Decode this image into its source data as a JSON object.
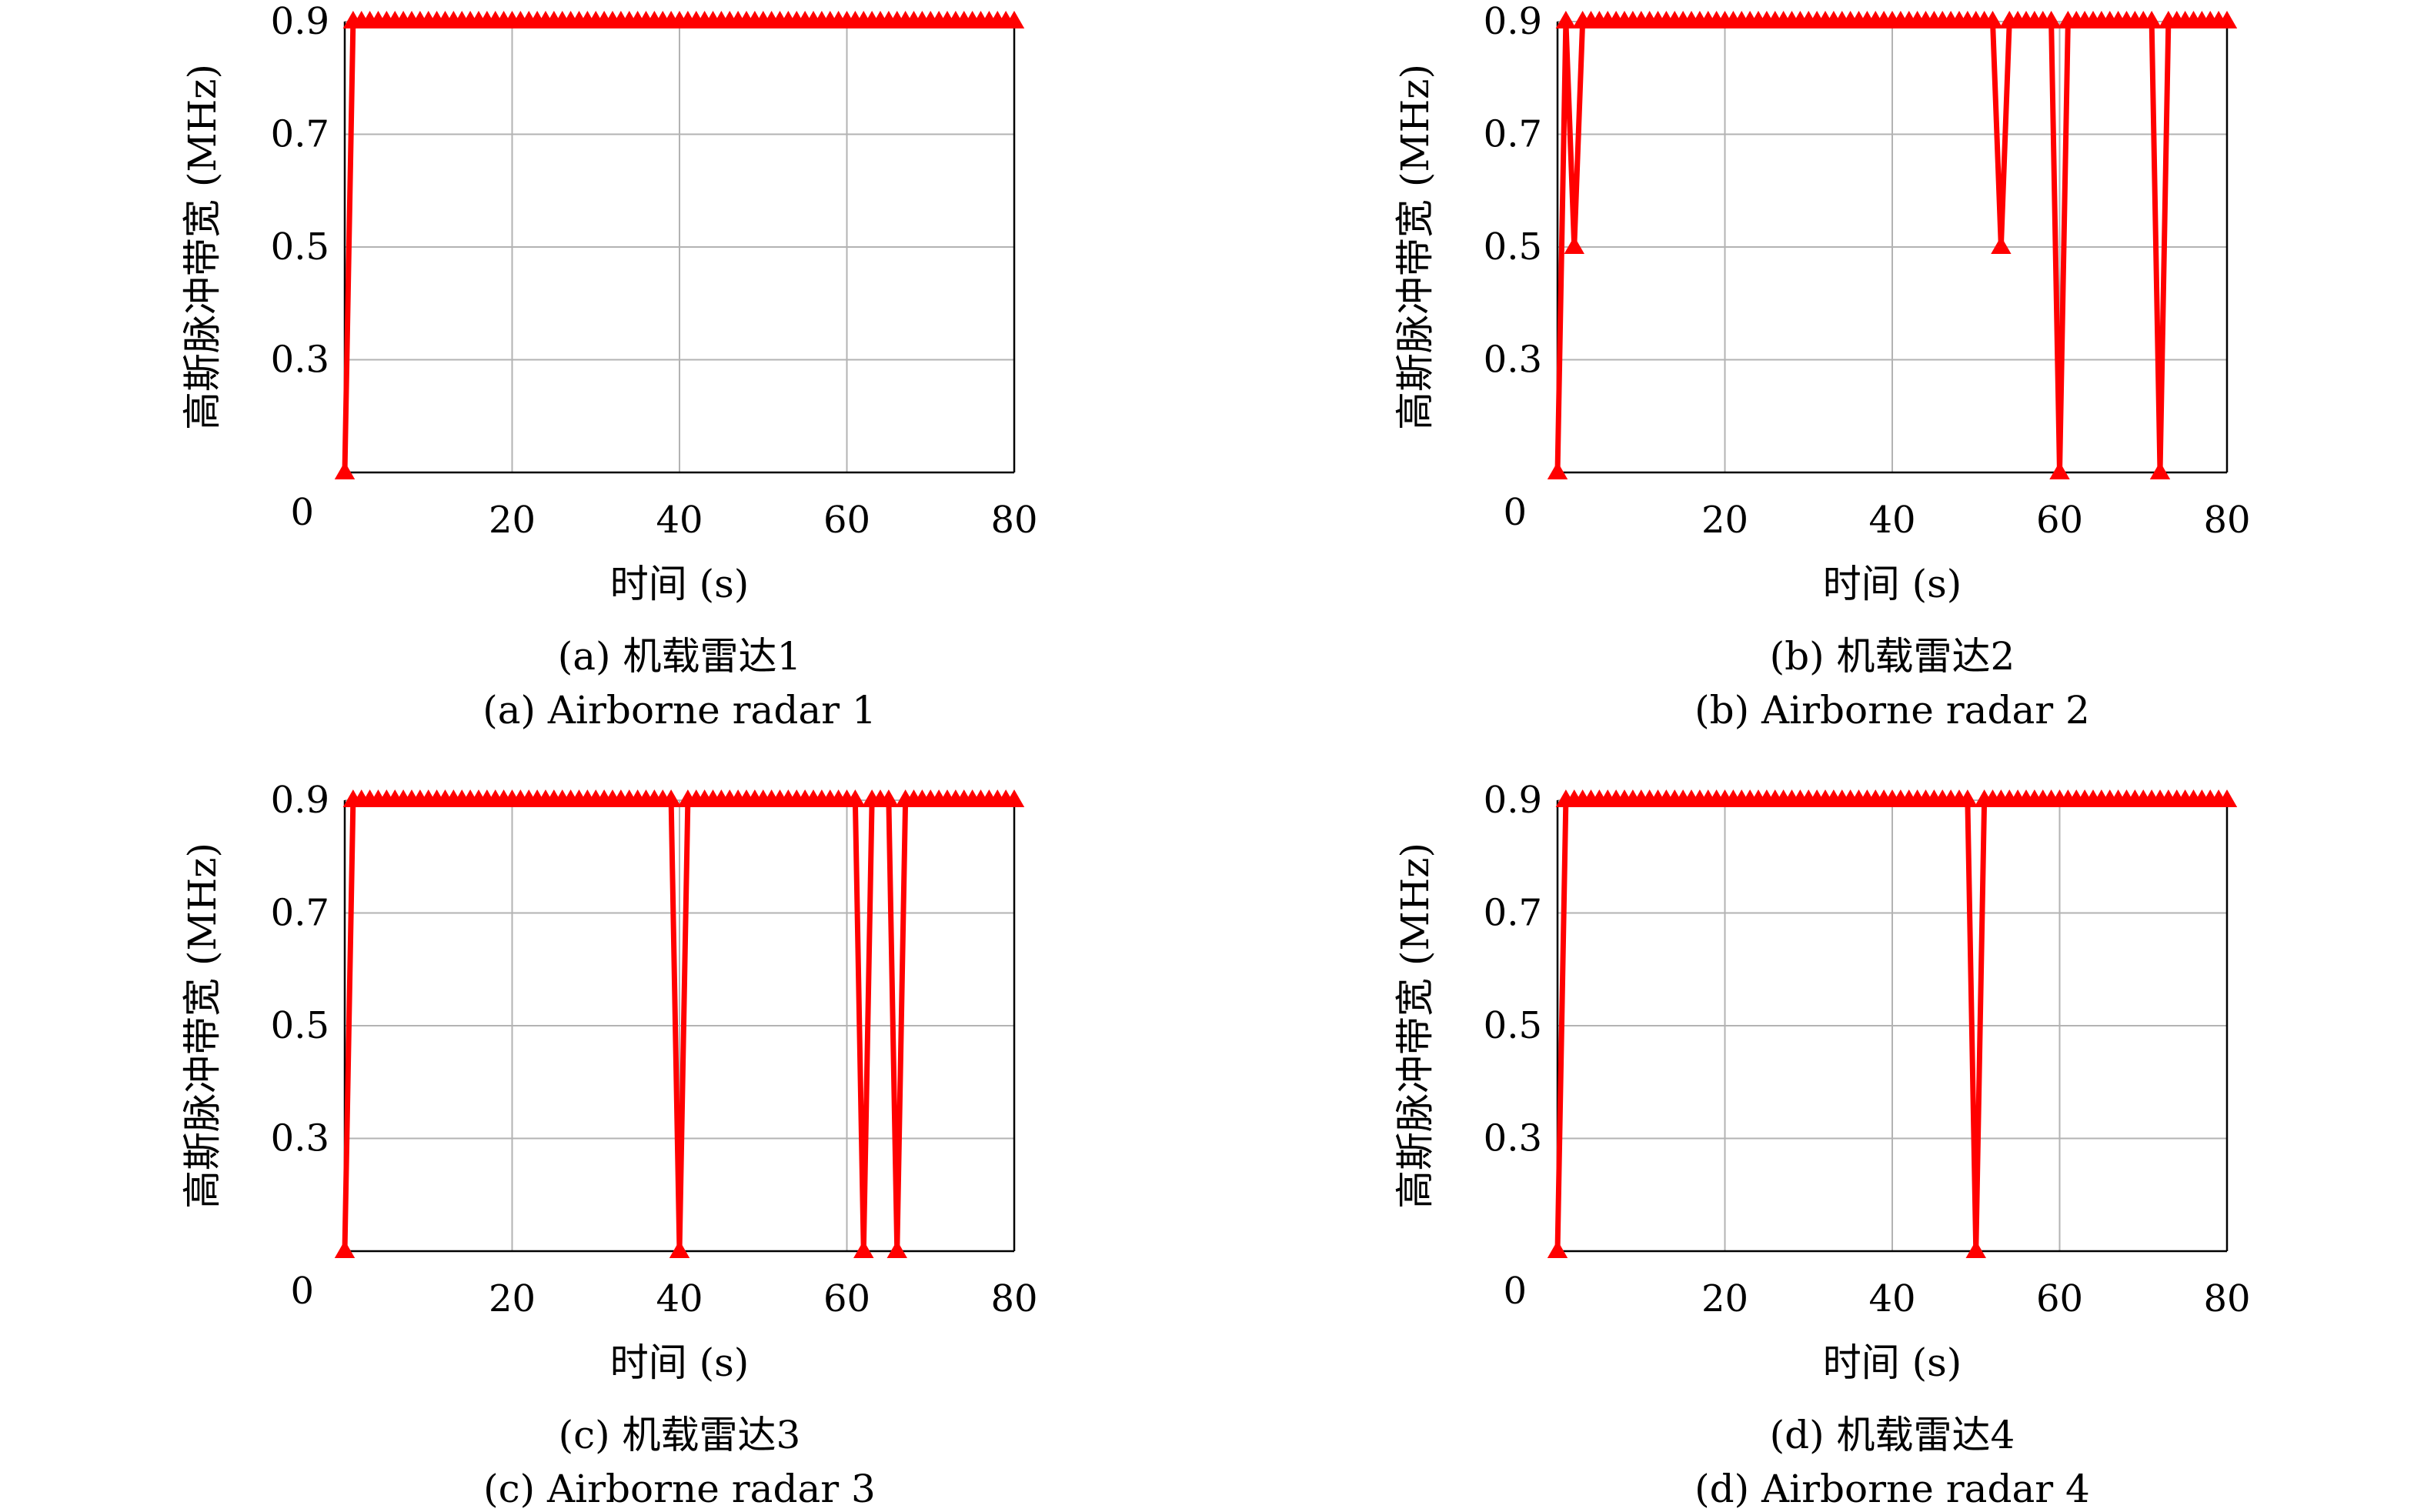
{
  "colors": {
    "series": "#ff0000",
    "grid": "#b3b3b3",
    "axis": "#000000"
  },
  "marker": "triangle-up",
  "chart_data": [
    {
      "type": "line",
      "caption_cn": "(a) 机载雷达1",
      "caption_en": "(a) Airborne radar 1",
      "xlabel": "时间 (s)",
      "ylabel": "高斯脉冲带宽 (MHz)",
      "xlim": [
        0,
        80
      ],
      "ylim": [
        0.1,
        0.9
      ],
      "xticks": [
        20,
        40,
        60,
        80
      ],
      "xtick_labels": [
        "20",
        "40",
        "60",
        "80"
      ],
      "yticks": [
        0.3,
        0.5,
        0.7,
        0.9
      ],
      "ytick_labels": [
        "0.3",
        "0.5",
        "0.7",
        "0.9"
      ],
      "origin_label": "0",
      "grid": true,
      "series": [
        {
          "marker": "triangle-up",
          "color": "#ff0000",
          "x": [
            0,
            1,
            2,
            3,
            4,
            5,
            6,
            7,
            8,
            9,
            10,
            11,
            12,
            13,
            14,
            15,
            16,
            17,
            18,
            19,
            20,
            21,
            22,
            23,
            24,
            25,
            26,
            27,
            28,
            29,
            30,
            31,
            32,
            33,
            34,
            35,
            36,
            37,
            38,
            39,
            40,
            41,
            42,
            43,
            44,
            45,
            46,
            47,
            48,
            49,
            50,
            51,
            52,
            53,
            54,
            55,
            56,
            57,
            58,
            59,
            60,
            61,
            62,
            63,
            64,
            65,
            66,
            67,
            68,
            69,
            70,
            71,
            72,
            73,
            74,
            75,
            76,
            77,
            78,
            79,
            80
          ],
          "y": [
            0.1,
            0.9,
            0.9,
            0.9,
            0.9,
            0.9,
            0.9,
            0.9,
            0.9,
            0.9,
            0.9,
            0.9,
            0.9,
            0.9,
            0.9,
            0.9,
            0.9,
            0.9,
            0.9,
            0.9,
            0.9,
            0.9,
            0.9,
            0.9,
            0.9,
            0.9,
            0.9,
            0.9,
            0.9,
            0.9,
            0.9,
            0.9,
            0.9,
            0.9,
            0.9,
            0.9,
            0.9,
            0.9,
            0.9,
            0.9,
            0.9,
            0.9,
            0.9,
            0.9,
            0.9,
            0.9,
            0.9,
            0.9,
            0.9,
            0.9,
            0.9,
            0.9,
            0.9,
            0.9,
            0.9,
            0.9,
            0.9,
            0.9,
            0.9,
            0.9,
            0.9,
            0.9,
            0.9,
            0.9,
            0.9,
            0.9,
            0.9,
            0.9,
            0.9,
            0.9,
            0.9,
            0.9,
            0.9,
            0.9,
            0.9,
            0.9,
            0.9,
            0.9,
            0.9,
            0.9,
            0.9
          ]
        }
      ]
    },
    {
      "type": "line",
      "caption_cn": "(b) 机载雷达2",
      "caption_en": "(b) Airborne radar 2",
      "xlabel": "时间 (s)",
      "ylabel": "高斯脉冲带宽 (MHz)",
      "xlim": [
        0,
        80
      ],
      "ylim": [
        0.1,
        0.9
      ],
      "xticks": [
        20,
        40,
        60,
        80
      ],
      "xtick_labels": [
        "20",
        "40",
        "60",
        "80"
      ],
      "yticks": [
        0.3,
        0.5,
        0.7,
        0.9
      ],
      "ytick_labels": [
        "0.3",
        "0.5",
        "0.7",
        "0.9"
      ],
      "origin_label": "0",
      "grid": true,
      "series": [
        {
          "marker": "triangle-up",
          "color": "#ff0000",
          "x": [
            0,
            1,
            2,
            3,
            4,
            5,
            6,
            7,
            8,
            9,
            10,
            11,
            12,
            13,
            14,
            15,
            16,
            17,
            18,
            19,
            20,
            21,
            22,
            23,
            24,
            25,
            26,
            27,
            28,
            29,
            30,
            31,
            32,
            33,
            34,
            35,
            36,
            37,
            38,
            39,
            40,
            41,
            42,
            43,
            44,
            45,
            46,
            47,
            48,
            49,
            50,
            51,
            52,
            53,
            54,
            55,
            56,
            57,
            58,
            59,
            60,
            61,
            62,
            63,
            64,
            65,
            66,
            67,
            68,
            69,
            70,
            71,
            72,
            73,
            74,
            75,
            76,
            77,
            78,
            79,
            80
          ],
          "y": [
            0.1,
            0.9,
            0.5,
            0.9,
            0.9,
            0.9,
            0.9,
            0.9,
            0.9,
            0.9,
            0.9,
            0.9,
            0.9,
            0.9,
            0.9,
            0.9,
            0.9,
            0.9,
            0.9,
            0.9,
            0.9,
            0.9,
            0.9,
            0.9,
            0.9,
            0.9,
            0.9,
            0.9,
            0.9,
            0.9,
            0.9,
            0.9,
            0.9,
            0.9,
            0.9,
            0.9,
            0.9,
            0.9,
            0.9,
            0.9,
            0.9,
            0.9,
            0.9,
            0.9,
            0.9,
            0.9,
            0.9,
            0.9,
            0.9,
            0.9,
            0.9,
            0.9,
            0.9,
            0.5,
            0.9,
            0.9,
            0.9,
            0.9,
            0.9,
            0.9,
            0.1,
            0.9,
            0.9,
            0.9,
            0.9,
            0.9,
            0.9,
            0.9,
            0.9,
            0.9,
            0.9,
            0.9,
            0.1,
            0.9,
            0.9,
            0.9,
            0.9,
            0.9,
            0.9,
            0.9,
            0.9
          ]
        }
      ]
    },
    {
      "type": "line",
      "caption_cn": "(c) 机载雷达3",
      "caption_en": "(c) Airborne radar 3",
      "xlabel": "时间 (s)",
      "ylabel": "高斯脉冲带宽 (MHz)",
      "xlim": [
        0,
        80
      ],
      "ylim": [
        0.1,
        0.9
      ],
      "xticks": [
        20,
        40,
        60,
        80
      ],
      "xtick_labels": [
        "20",
        "40",
        "60",
        "80"
      ],
      "yticks": [
        0.3,
        0.5,
        0.7,
        0.9
      ],
      "ytick_labels": [
        "0.3",
        "0.5",
        "0.7",
        "0.9"
      ],
      "origin_label": "0",
      "grid": true,
      "series": [
        {
          "marker": "triangle-up",
          "color": "#ff0000",
          "x": [
            0,
            1,
            2,
            3,
            4,
            5,
            6,
            7,
            8,
            9,
            10,
            11,
            12,
            13,
            14,
            15,
            16,
            17,
            18,
            19,
            20,
            21,
            22,
            23,
            24,
            25,
            26,
            27,
            28,
            29,
            30,
            31,
            32,
            33,
            34,
            35,
            36,
            37,
            38,
            39,
            40,
            41,
            42,
            43,
            44,
            45,
            46,
            47,
            48,
            49,
            50,
            51,
            52,
            53,
            54,
            55,
            56,
            57,
            58,
            59,
            60,
            61,
            62,
            63,
            64,
            65,
            66,
            67,
            68,
            69,
            70,
            71,
            72,
            73,
            74,
            75,
            76,
            77,
            78,
            79,
            80
          ],
          "y": [
            0.1,
            0.9,
            0.9,
            0.9,
            0.9,
            0.9,
            0.9,
            0.9,
            0.9,
            0.9,
            0.9,
            0.9,
            0.9,
            0.9,
            0.9,
            0.9,
            0.9,
            0.9,
            0.9,
            0.9,
            0.9,
            0.9,
            0.9,
            0.9,
            0.9,
            0.9,
            0.9,
            0.9,
            0.9,
            0.9,
            0.9,
            0.9,
            0.9,
            0.9,
            0.9,
            0.9,
            0.9,
            0.9,
            0.9,
            0.9,
            0.1,
            0.9,
            0.9,
            0.9,
            0.9,
            0.9,
            0.9,
            0.9,
            0.9,
            0.9,
            0.9,
            0.9,
            0.9,
            0.9,
            0.9,
            0.9,
            0.9,
            0.9,
            0.9,
            0.9,
            0.9,
            0.9,
            0.1,
            0.9,
            0.9,
            0.9,
            0.1,
            0.9,
            0.9,
            0.9,
            0.9,
            0.9,
            0.9,
            0.9,
            0.9,
            0.9,
            0.9,
            0.9,
            0.9,
            0.9,
            0.9
          ]
        }
      ]
    },
    {
      "type": "line",
      "caption_cn": "(d) 机载雷达4",
      "caption_en": "(d) Airborne radar 4",
      "xlabel": "时间 (s)",
      "ylabel": "高斯脉冲带宽 (MHz)",
      "xlim": [
        0,
        80
      ],
      "ylim": [
        0.1,
        0.9
      ],
      "xticks": [
        20,
        40,
        60,
        80
      ],
      "xtick_labels": [
        "20",
        "40",
        "60",
        "80"
      ],
      "yticks": [
        0.3,
        0.5,
        0.7,
        0.9
      ],
      "ytick_labels": [
        "0.3",
        "0.5",
        "0.7",
        "0.9"
      ],
      "origin_label": "0",
      "grid": true,
      "series": [
        {
          "marker": "triangle-up",
          "color": "#ff0000",
          "x": [
            0,
            1,
            2,
            3,
            4,
            5,
            6,
            7,
            8,
            9,
            10,
            11,
            12,
            13,
            14,
            15,
            16,
            17,
            18,
            19,
            20,
            21,
            22,
            23,
            24,
            25,
            26,
            27,
            28,
            29,
            30,
            31,
            32,
            33,
            34,
            35,
            36,
            37,
            38,
            39,
            40,
            41,
            42,
            43,
            44,
            45,
            46,
            47,
            48,
            49,
            50,
            51,
            52,
            53,
            54,
            55,
            56,
            57,
            58,
            59,
            60,
            61,
            62,
            63,
            64,
            65,
            66,
            67,
            68,
            69,
            70,
            71,
            72,
            73,
            74,
            75,
            76,
            77,
            78,
            79,
            80
          ],
          "y": [
            0.1,
            0.9,
            0.9,
            0.9,
            0.9,
            0.9,
            0.9,
            0.9,
            0.9,
            0.9,
            0.9,
            0.9,
            0.9,
            0.9,
            0.9,
            0.9,
            0.9,
            0.9,
            0.9,
            0.9,
            0.9,
            0.9,
            0.9,
            0.9,
            0.9,
            0.9,
            0.9,
            0.9,
            0.9,
            0.9,
            0.9,
            0.9,
            0.9,
            0.9,
            0.9,
            0.9,
            0.9,
            0.9,
            0.9,
            0.9,
            0.9,
            0.9,
            0.9,
            0.9,
            0.9,
            0.9,
            0.9,
            0.9,
            0.9,
            0.9,
            0.1,
            0.9,
            0.9,
            0.9,
            0.9,
            0.9,
            0.9,
            0.9,
            0.9,
            0.9,
            0.9,
            0.9,
            0.9,
            0.9,
            0.9,
            0.9,
            0.9,
            0.9,
            0.9,
            0.9,
            0.9,
            0.9,
            0.9,
            0.9,
            0.9,
            0.9,
            0.9,
            0.9,
            0.9,
            0.9,
            0.9
          ]
        }
      ]
    }
  ]
}
